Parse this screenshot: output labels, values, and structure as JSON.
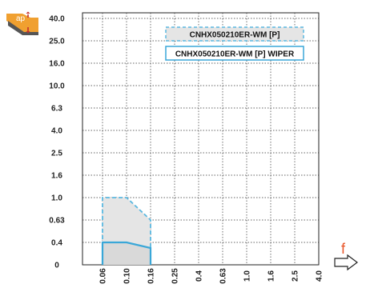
{
  "chart_data": {
    "type": "area",
    "x_scale": "categorical",
    "x_ticks": [
      "0.06",
      "0.10",
      "0.16",
      "0.25",
      "0.4",
      "0.63",
      "1.0",
      "1.6",
      "2.5",
      "4.0"
    ],
    "y_scale": "categorical",
    "y_ticks": [
      "0",
      "0.4",
      "0.63",
      "1.0",
      "1.6",
      "2.5",
      "4.0",
      "6.3",
      "10.0",
      "16.0",
      "25.0",
      "40.0"
    ],
    "xlabel": "f",
    "ylabel": "ap",
    "grid": true,
    "legend_position": "top-right",
    "series": [
      {
        "name": "CNHX050210ER-WM [P]",
        "style": "dashed",
        "color": "#5bb8e0",
        "fill": "#e5e5e5",
        "points": [
          [
            0.06,
            0
          ],
          [
            0.06,
            1.0
          ],
          [
            0.1,
            1.0
          ],
          [
            0.16,
            0.63
          ],
          [
            0.16,
            0
          ]
        ]
      },
      {
        "name": "CNHX050210ER-WM [P] WIPER",
        "style": "solid",
        "color": "#3aa7d8",
        "fill": "#d9d9d9",
        "points": [
          [
            0.06,
            0
          ],
          [
            0.06,
            0.4
          ],
          [
            0.1,
            0.4
          ],
          [
            0.16,
            0.3
          ],
          [
            0.16,
            0
          ]
        ]
      }
    ]
  },
  "icon": {
    "name": "depth-of-cut-insert-icon",
    "label": "ap",
    "color": "#f0a030"
  }
}
